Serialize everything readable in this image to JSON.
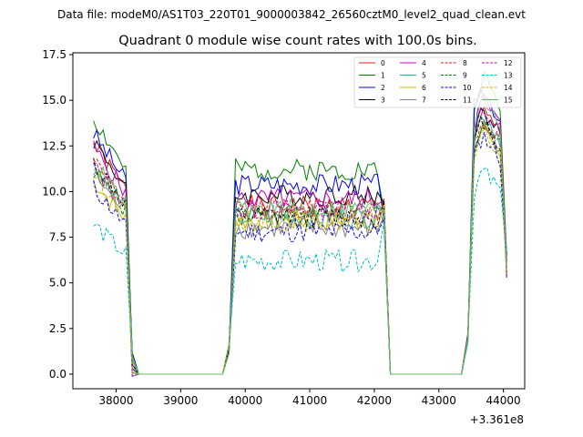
{
  "header": {
    "file_line": "Data file: modeM0/AS1T03_220T01_9000003842_26560cztM0_level2_quad_clean.evt",
    "title": "Quadrant 0 module wise count rates with 100.0s bins."
  },
  "chart_data": {
    "type": "line",
    "title": "Quadrant 0 module wise count rates with 100.0s bins.",
    "xlabel": "",
    "ylabel": "",
    "x_offset_label": "+3.361e8",
    "xlim": [
      37330,
      44330
    ],
    "ylim": [
      -0.8,
      17.6
    ],
    "x_ticks": [
      38000,
      39000,
      40000,
      41000,
      42000,
      43000,
      44000
    ],
    "x_tick_labels": [
      "38000",
      "39000",
      "40000",
      "41000",
      "42000",
      "43000",
      "44000"
    ],
    "y_ticks": [
      0,
      2.5,
      5,
      7.5,
      10,
      12.5,
      15,
      17.5
    ],
    "y_tick_labels": [
      "0.0",
      "2.5",
      "5.0",
      "7.5",
      "10.0",
      "12.5",
      "15.0",
      "17.5"
    ],
    "legend_location": "top-right",
    "segments": [
      {
        "start": 37650,
        "end": 38150,
        "shape": "decay",
        "edge_in": null,
        "edge_out": [
          38250,
          0.5
        ]
      },
      {
        "start": 38350,
        "end": 39650,
        "shape": "zero"
      },
      {
        "start": 39850,
        "end": 42050,
        "shape": "flat",
        "edge_in": [
          39750,
          1.4
        ],
        "edge_out": [
          42150,
          9.0
        ]
      },
      {
        "start": 42250,
        "end": 43350,
        "shape": "zero"
      },
      {
        "start": 43550,
        "end": 43950,
        "shape": "peak",
        "edge_in": [
          43450,
          2.0
        ],
        "edge_out": [
          44050,
          6.0
        ]
      }
    ],
    "series": [
      {
        "name": "0",
        "color": "#e41a1c",
        "dash": "solid",
        "segment_levels": [
          12.6,
          9.2,
          14.8
        ],
        "seed": 1
      },
      {
        "name": "1",
        "color": "#008000",
        "dash": "solid",
        "segment_levels": [
          14.0,
          11.2,
          16.4
        ],
        "seed": 2
      },
      {
        "name": "2",
        "color": "#0000ff",
        "dash": "solid",
        "segment_levels": [
          13.2,
          10.4,
          15.6
        ],
        "seed": 3
      },
      {
        "name": "3",
        "color": "#000000",
        "dash": "solid",
        "segment_levels": [
          12.8,
          9.8,
          14.6
        ],
        "seed": 4
      },
      {
        "name": "4",
        "color": "#bf00bf",
        "dash": "solid",
        "segment_levels": [
          12.4,
          9.6,
          15.2
        ],
        "seed": 5
      },
      {
        "name": "5",
        "color": "#20b2aa",
        "dash": "solid",
        "segment_levels": [
          11.4,
          8.6,
          14.4
        ],
        "seed": 6
      },
      {
        "name": "6",
        "color": "#c8b400",
        "dash": "solid",
        "segment_levels": [
          10.6,
          8.4,
          13.6
        ],
        "seed": 7
      },
      {
        "name": "7",
        "color": "#808080",
        "dash": "solid",
        "segment_levels": [
          11.0,
          8.0,
          13.8
        ],
        "seed": 8
      },
      {
        "name": "8",
        "color": "#e41a1c",
        "dash": "dashed",
        "segment_levels": [
          11.8,
          9.0,
          14.2
        ],
        "seed": 9
      },
      {
        "name": "9",
        "color": "#008000",
        "dash": "dashed",
        "segment_levels": [
          11.2,
          8.8,
          14.0
        ],
        "seed": 10
      },
      {
        "name": "10",
        "color": "#0000ff",
        "dash": "dashed",
        "segment_levels": [
          10.2,
          7.8,
          13.2
        ],
        "seed": 11
      },
      {
        "name": "11",
        "color": "#000000",
        "dash": "dashed",
        "segment_levels": [
          11.6,
          8.6,
          14.0
        ],
        "seed": 12
      },
      {
        "name": "12",
        "color": "#bf00bf",
        "dash": "dashed",
        "segment_levels": [
          11.4,
          9.0,
          14.6
        ],
        "seed": 13
      },
      {
        "name": "13",
        "color": "#00bfbf",
        "dash": "dashed",
        "segment_levels": [
          8.2,
          6.2,
          11.2
        ],
        "seed": 14
      },
      {
        "name": "14",
        "color": "#c8b400",
        "dash": "dashed",
        "segment_levels": [
          11.0,
          8.4,
          13.4
        ],
        "seed": 15
      },
      {
        "name": "15",
        "color": "#66bb66",
        "dash": "solid",
        "segment_levels": [
          11.6,
          9.0,
          15.4
        ],
        "seed": 16
      }
    ]
  }
}
